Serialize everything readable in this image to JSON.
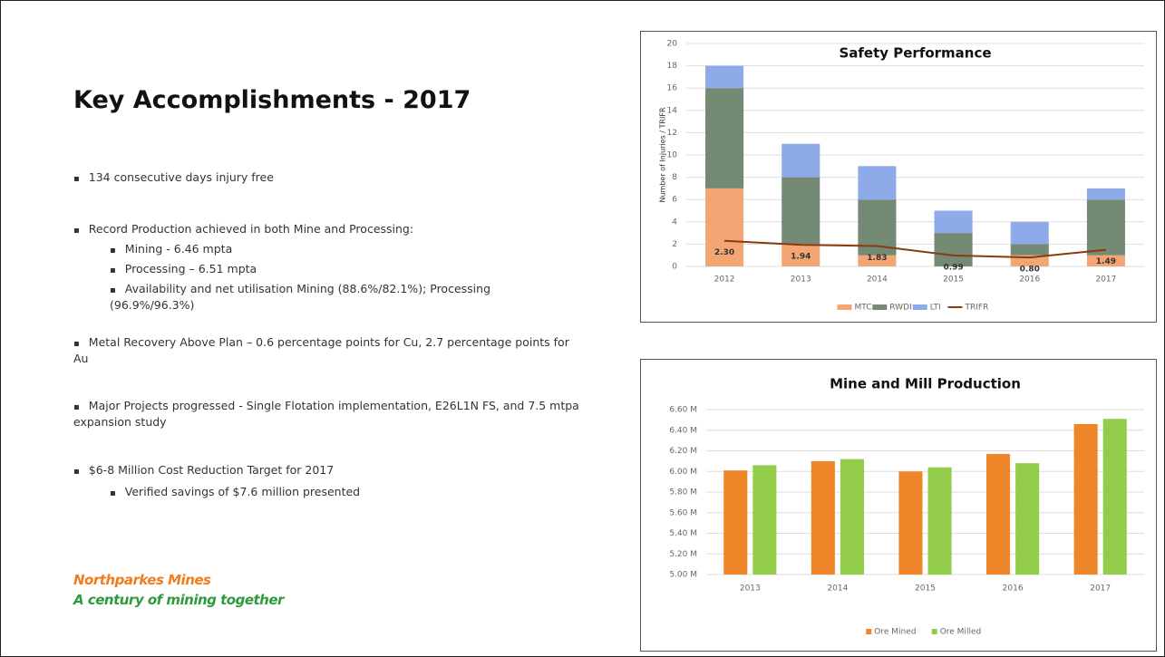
{
  "header": {
    "title": "Key Accomplishments - 2017"
  },
  "bullets": [
    {
      "text": "134 consecutive days injury free"
    },
    {
      "text": "Record Production achieved in both Mine and Processing:",
      "items": [
        "Mining - 6.46 mpta",
        "Processing – 6.51 mpta",
        "Availability and net utilisation Mining (88.6%/82.1%);  Processing (96.9%/96.3%)"
      ]
    },
    {
      "text": "Metal Recovery Above Plan – 0.6 percentage points for Cu, 2.7 percentage points for Au"
    },
    {
      "text": "Major Projects progressed - Single Flotation implementation, E26L1N FS, and 7.5 mtpa expansion study"
    },
    {
      "text": "$6-8 Million Cost Reduction Target for 2017",
      "items": [
        "Verified savings of $7.6 million presented"
      ]
    }
  ],
  "footer": {
    "company": "Northparkes Mines",
    "tagline": "A century of mining together"
  },
  "chart_data": [
    {
      "type": "stacked-bar-line",
      "title": "Safety Performance",
      "y_label": "Number of Injuries / TRIFR",
      "categories": [
        "2012",
        "2013",
        "2014",
        "2015",
        "2016",
        "2017"
      ],
      "ylim": [
        0,
        20
      ],
      "yticks": [
        0,
        2,
        4,
        6,
        8,
        10,
        12,
        14,
        16,
        18,
        20
      ],
      "grid": true,
      "legend": "bottom",
      "series": [
        {
          "name": "MTC",
          "color": "#f2a673",
          "values": [
            7,
            2,
            1,
            0,
            1,
            1
          ]
        },
        {
          "name": "RWDI",
          "color": "#748a74",
          "values": [
            9,
            6,
            5,
            3,
            1,
            5
          ]
        },
        {
          "name": "LTI",
          "color": "#8eaae8",
          "values": [
            2,
            3,
            3,
            2,
            2,
            1
          ]
        },
        {
          "name": "TRIFR",
          "color": "#8b3a10",
          "type": "line",
          "values": [
            2.3,
            1.94,
            1.83,
            0.99,
            0.8,
            1.49
          ],
          "value_labels": [
            "2.30",
            "1.94",
            "1.83",
            "0.99",
            "0.80",
            "1.49"
          ]
        }
      ]
    },
    {
      "type": "bar",
      "title": "Mine and Mill Production",
      "categories": [
        "2013",
        "2014",
        "2015",
        "2016",
        "2017"
      ],
      "ylim": [
        5,
        6.6
      ],
      "yticks": [
        {
          "value": 5,
          "label": "5.00 M"
        },
        {
          "value": 5.2,
          "label": "5.20 M"
        },
        {
          "value": 5.4,
          "label": "5.40 M"
        },
        {
          "value": 5.6,
          "label": "5.60 M"
        },
        {
          "value": 5.8,
          "label": "5.80 M"
        },
        {
          "value": 6,
          "label": "6.00 M"
        },
        {
          "value": 6.2,
          "label": "6.20 M"
        },
        {
          "value": 6.4,
          "label": "6.40 M"
        },
        {
          "value": 6.6,
          "label": "6.60 M"
        }
      ],
      "grid": true,
      "legend": "bottom",
      "series": [
        {
          "name": "Ore Mined",
          "color": "#f0862a",
          "values": [
            6.01,
            6.1,
            6.0,
            6.17,
            6.46
          ]
        },
        {
          "name": "Ore Milled",
          "color": "#92cc48",
          "values": [
            6.06,
            6.12,
            6.04,
            6.08,
            6.51
          ]
        }
      ]
    }
  ]
}
